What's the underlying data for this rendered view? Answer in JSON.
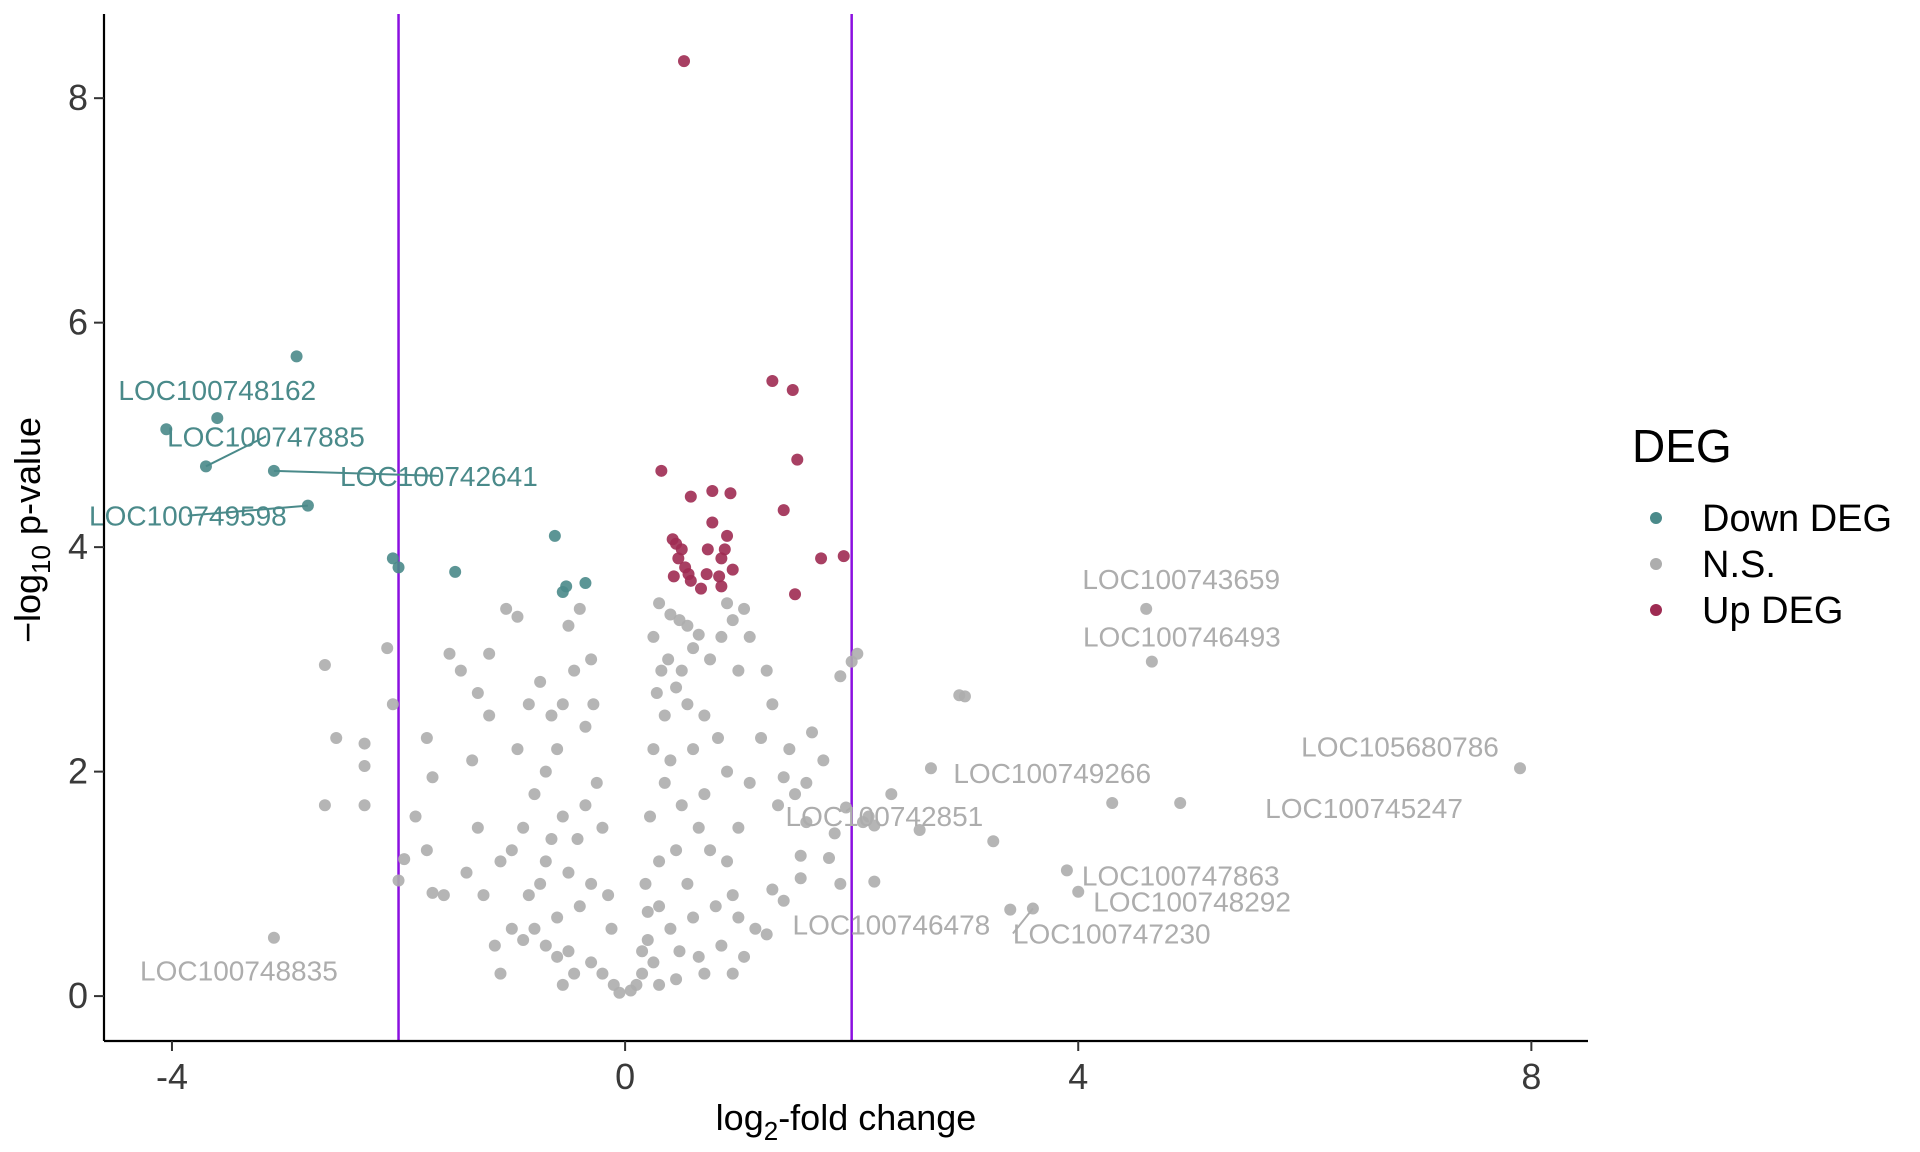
{
  "chart_data": {
    "type": "scatter",
    "xlabel": {
      "prefix": "log",
      "sub": "2",
      "suffix": "-fold change"
    },
    "ylabel": {
      "prefix": "−log",
      "sub": "10",
      "suffix": " p-value"
    },
    "xlim": [
      -4.6,
      8.5
    ],
    "ylim": [
      -0.4,
      8.75
    ],
    "xticks": [
      -4,
      0,
      4,
      8
    ],
    "yticks": [
      0,
      2,
      4,
      6,
      8
    ],
    "xtick_labels": [
      "-4",
      "0",
      "4",
      "8"
    ],
    "ytick_labels": [
      "0",
      "2",
      "4",
      "6",
      "8"
    ],
    "grid": false,
    "threshold_lines": {
      "x": [
        -2,
        2
      ],
      "color": "#8B10E0"
    },
    "legend": {
      "title": "DEG",
      "position": "right",
      "entries": [
        {
          "label": "Down DEG",
          "color": "#4A8A8A"
        },
        {
          "label": "N.S.",
          "color": "#ADADAD"
        },
        {
          "label": "Up DEG",
          "color": "#9E2B52"
        }
      ]
    },
    "series": [
      {
        "name": "Down DEG",
        "color": "#4A8A8A",
        "points": [
          [
            -2.9,
            5.7
          ],
          [
            -3.6,
            5.15
          ],
          [
            -4.05,
            5.05
          ],
          [
            -3.7,
            4.72
          ],
          [
            -3.1,
            4.68
          ],
          [
            -2.8,
            4.37
          ],
          [
            -2.05,
            3.9
          ],
          [
            -2.0,
            3.82
          ],
          [
            -1.5,
            3.78
          ],
          [
            -0.62,
            4.1
          ],
          [
            -0.52,
            3.65
          ],
          [
            -0.55,
            3.6
          ],
          [
            -0.35,
            3.68
          ]
        ]
      },
      {
        "name": "Up DEG",
        "color": "#9E2B52",
        "points": [
          [
            0.52,
            8.33
          ],
          [
            1.3,
            5.48
          ],
          [
            1.48,
            5.4
          ],
          [
            1.52,
            4.78
          ],
          [
            0.32,
            4.68
          ],
          [
            0.58,
            4.45
          ],
          [
            0.77,
            4.5
          ],
          [
            0.93,
            4.48
          ],
          [
            1.4,
            4.33
          ],
          [
            0.77,
            4.22
          ],
          [
            0.42,
            4.07
          ],
          [
            0.45,
            4.03
          ],
          [
            0.9,
            4.1
          ],
          [
            0.5,
            3.98
          ],
          [
            0.73,
            3.98
          ],
          [
            0.88,
            3.98
          ],
          [
            0.47,
            3.9
          ],
          [
            0.85,
            3.9
          ],
          [
            0.53,
            3.82
          ],
          [
            0.56,
            3.76
          ],
          [
            0.95,
            3.8
          ],
          [
            0.43,
            3.74
          ],
          [
            0.58,
            3.7
          ],
          [
            0.72,
            3.76
          ],
          [
            0.83,
            3.74
          ],
          [
            0.67,
            3.63
          ],
          [
            0.85,
            3.65
          ],
          [
            1.5,
            3.58
          ],
          [
            1.73,
            3.9
          ],
          [
            1.93,
            3.92
          ]
        ]
      },
      {
        "name": "N.S.",
        "color": "#ADADAD",
        "points": [
          [
            4.6,
            3.45
          ],
          [
            4.65,
            2.98
          ],
          [
            7.9,
            2.03
          ],
          [
            4.3,
            1.72
          ],
          [
            4.9,
            1.72
          ],
          [
            3.9,
            1.12
          ],
          [
            4.0,
            0.93
          ],
          [
            3.6,
            0.78
          ],
          [
            3.4,
            0.77
          ],
          [
            -3.1,
            0.52
          ],
          [
            2.05,
            3.05
          ],
          [
            2.0,
            2.98
          ],
          [
            1.9,
            2.85
          ],
          [
            2.95,
            2.68
          ],
          [
            3.0,
            2.67
          ],
          [
            2.7,
            2.03
          ],
          [
            2.35,
            1.8
          ],
          [
            2.15,
            1.6
          ],
          [
            2.1,
            1.55
          ],
          [
            2.2,
            1.52
          ],
          [
            2.6,
            1.48
          ],
          [
            3.25,
            1.38
          ],
          [
            1.95,
            1.68
          ],
          [
            1.9,
            1.0
          ],
          [
            2.2,
            1.02
          ],
          [
            -2.65,
            2.95
          ],
          [
            -2.55,
            2.3
          ],
          [
            -2.3,
            2.25
          ],
          [
            -2.3,
            2.05
          ],
          [
            -2.3,
            1.7
          ],
          [
            -2.65,
            1.7
          ],
          [
            -2.1,
            3.1
          ],
          [
            -2.05,
            2.6
          ],
          [
            -1.95,
            1.22
          ],
          [
            -2.0,
            1.03
          ],
          [
            -1.85,
            1.6
          ],
          [
            -1.75,
            1.3
          ],
          [
            -1.7,
            0.92
          ],
          [
            -1.6,
            0.9
          ],
          [
            -1.75,
            2.3
          ],
          [
            -1.7,
            1.95
          ],
          [
            1.75,
            2.1
          ],
          [
            1.65,
            2.35
          ],
          [
            1.6,
            1.55
          ],
          [
            1.8,
            1.23
          ],
          [
            1.85,
            1.45
          ],
          [
            1.55,
            1.25
          ],
          [
            1.4,
            1.95
          ],
          [
            1.35,
            1.7
          ],
          [
            1.3,
            0.95
          ],
          [
            1.15,
            0.6
          ],
          [
            1.05,
            0.35
          ],
          [
            -1.05,
            3.45
          ],
          [
            -0.95,
            3.38
          ],
          [
            -1.2,
            2.5
          ],
          [
            -1.35,
            2.1
          ],
          [
            -1.1,
            1.2
          ],
          [
            -1.15,
            0.45
          ],
          [
            -1.0,
            0.6
          ],
          [
            1.1,
            3.2
          ],
          [
            1.0,
            2.9
          ],
          [
            0.95,
            3.35
          ],
          [
            1.05,
            3.45
          ],
          [
            0.9,
            3.5
          ],
          [
            0.3,
            3.5
          ],
          [
            0.4,
            3.4
          ],
          [
            0.48,
            3.35
          ],
          [
            0.55,
            3.3
          ],
          [
            0.6,
            3.1
          ],
          [
            0.65,
            3.22
          ],
          [
            0.85,
            3.2
          ],
          [
            0.75,
            3.0
          ],
          [
            0.5,
            2.9
          ],
          [
            0.45,
            2.75
          ],
          [
            0.55,
            2.6
          ],
          [
            0.7,
            2.5
          ],
          [
            0.82,
            2.3
          ],
          [
            0.9,
            2.0
          ],
          [
            0.6,
            2.2
          ],
          [
            0.4,
            2.1
          ],
          [
            0.35,
            1.9
          ],
          [
            0.5,
            1.7
          ],
          [
            0.65,
            1.5
          ],
          [
            0.75,
            1.3
          ],
          [
            0.9,
            1.2
          ],
          [
            0.55,
            1.0
          ],
          [
            0.3,
            0.8
          ],
          [
            0.4,
            0.6
          ],
          [
            0.2,
            0.5
          ],
          [
            0.25,
            0.3
          ],
          [
            0.15,
            0.2
          ],
          [
            0.1,
            0.1
          ],
          [
            0.05,
            0.05
          ],
          [
            0.6,
            0.7
          ],
          [
            0.8,
            0.8
          ],
          [
            0.95,
            0.9
          ],
          [
            1.0,
            1.5
          ],
          [
            1.1,
            1.9
          ],
          [
            1.2,
            2.3
          ],
          [
            0.7,
            1.8
          ],
          [
            0.45,
            1.3
          ],
          [
            0.3,
            1.2
          ],
          [
            0.35,
            2.5
          ],
          [
            0.38,
            3.0
          ],
          [
            0.28,
            2.7
          ],
          [
            0.25,
            2.2
          ],
          [
            0.22,
            1.6
          ],
          [
            0.18,
            1.0
          ],
          [
            0.2,
            0.75
          ],
          [
            0.15,
            0.4
          ],
          [
            0.48,
            0.4
          ],
          [
            0.65,
            0.35
          ],
          [
            0.85,
            0.45
          ],
          [
            0.7,
            0.2
          ],
          [
            0.45,
            0.15
          ],
          [
            0.3,
            0.1
          ],
          [
            -0.4,
            3.45
          ],
          [
            -0.5,
            3.3
          ],
          [
            -0.3,
            3.0
          ],
          [
            -0.45,
            2.9
          ],
          [
            -0.55,
            2.6
          ],
          [
            -0.35,
            2.4
          ],
          [
            -0.6,
            2.2
          ],
          [
            -0.7,
            2.0
          ],
          [
            -0.8,
            1.8
          ],
          [
            -0.9,
            1.5
          ],
          [
            -1.0,
            1.3
          ],
          [
            -0.7,
            1.2
          ],
          [
            -0.5,
            1.1
          ],
          [
            -0.3,
            1.0
          ],
          [
            -0.4,
            0.8
          ],
          [
            -0.6,
            0.7
          ],
          [
            -0.8,
            0.6
          ],
          [
            -0.9,
            0.5
          ],
          [
            -0.5,
            0.4
          ],
          [
            -0.3,
            0.3
          ],
          [
            -0.2,
            0.2
          ],
          [
            -0.1,
            0.1
          ],
          [
            -0.05,
            0.03
          ],
          [
            -0.25,
            1.9
          ],
          [
            -0.2,
            1.5
          ],
          [
            -0.15,
            0.9
          ],
          [
            -0.12,
            0.6
          ],
          [
            -0.28,
            2.6
          ],
          [
            -0.35,
            1.7
          ],
          [
            -0.42,
            1.4
          ],
          [
            -0.55,
            1.6
          ],
          [
            -0.65,
            1.4
          ],
          [
            -0.75,
            1.0
          ],
          [
            -0.85,
            0.9
          ],
          [
            -0.6,
            0.35
          ],
          [
            -0.45,
            0.2
          ],
          [
            -0.7,
            0.45
          ],
          [
            -1.3,
            1.5
          ],
          [
            -1.25,
            0.9
          ],
          [
            -1.4,
            1.1
          ],
          [
            -0.95,
            2.2
          ],
          [
            -0.85,
            2.6
          ],
          [
            -0.75,
            2.8
          ],
          [
            -0.65,
            2.5
          ],
          [
            -1.45,
            2.9
          ],
          [
            -1.55,
            3.05
          ],
          [
            -1.3,
            2.7
          ],
          [
            -1.2,
            3.05
          ],
          [
            -0.55,
            0.1
          ],
          [
            -1.1,
            0.2
          ],
          [
            0.25,
            3.2
          ],
          [
            0.32,
            2.9
          ],
          [
            1.25,
            2.9
          ],
          [
            1.3,
            2.6
          ],
          [
            1.45,
            2.2
          ],
          [
            1.5,
            1.8
          ],
          [
            1.6,
            1.9
          ],
          [
            1.55,
            1.05
          ],
          [
            1.4,
            0.85
          ],
          [
            1.25,
            0.55
          ],
          [
            1.0,
            0.7
          ],
          [
            0.95,
            0.2
          ]
        ]
      }
    ],
    "labels": [
      {
        "text": "LOC100748162",
        "x": -3.6,
        "y": 5.15,
        "series": "Down DEG"
      },
      {
        "text": "LOC100747885",
        "x": -3.7,
        "y": 4.72,
        "series": "Down DEG"
      },
      {
        "text": "LOC100742641",
        "x": -3.1,
        "y": 4.68,
        "series": "Down DEG"
      },
      {
        "text": "LOC100749598",
        "x": -2.8,
        "y": 4.37,
        "series": "Down DEG"
      },
      {
        "text": "LOC100743659",
        "x": 4.6,
        "y": 3.45,
        "series": "N.S."
      },
      {
        "text": "LOC100746493",
        "x": 4.65,
        "y": 2.98,
        "series": "N.S."
      },
      {
        "text": "LOC105680786",
        "x": 7.9,
        "y": 2.03,
        "series": "N.S."
      },
      {
        "text": "LOC100749266",
        "x": 4.3,
        "y": 1.72,
        "series": "N.S."
      },
      {
        "text": "LOC100742851",
        "x": 3.25,
        "y": 1.38,
        "series": "N.S."
      },
      {
        "text": "LOC100745247",
        "x": 4.9,
        "y": 1.72,
        "series": "N.S."
      },
      {
        "text": "LOC100747863",
        "x": 3.9,
        "y": 1.12,
        "series": "N.S."
      },
      {
        "text": "LOC100748292",
        "x": 4.0,
        "y": 0.93,
        "series": "N.S."
      },
      {
        "text": "LOC100746478",
        "x": 3.4,
        "y": 0.77,
        "series": "N.S."
      },
      {
        "text": "LOC100747230",
        "x": 3.6,
        "y": 0.78,
        "series": "N.S."
      },
      {
        "text": "LOC100748835",
        "x": -3.1,
        "y": 0.52,
        "series": "N.S."
      }
    ]
  }
}
